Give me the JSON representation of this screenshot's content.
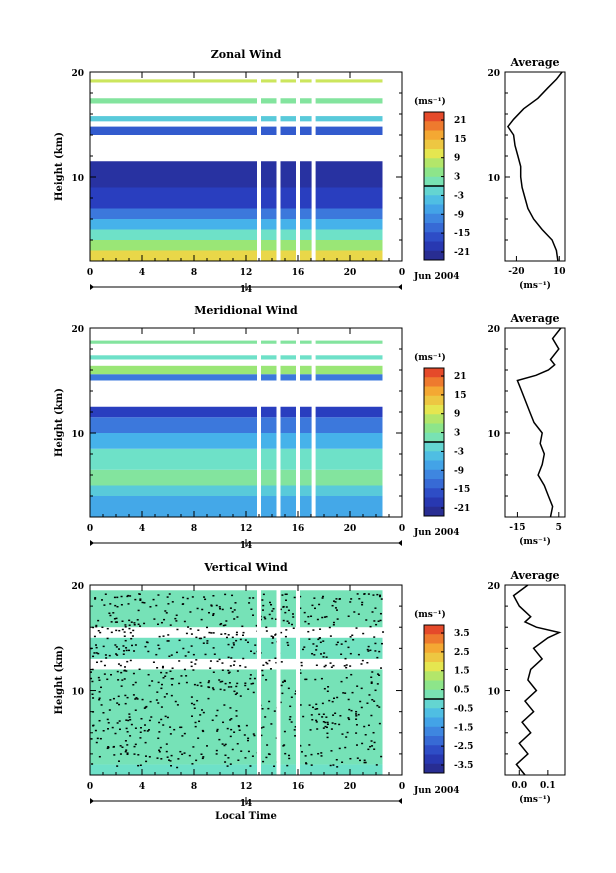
{
  "chart_data": [
    {
      "type": "heatmap",
      "title": "Zonal Wind",
      "ylabel": "Height (km)",
      "ylim": [
        2,
        20
      ],
      "yticks": [
        "10",
        "20"
      ],
      "xlim": [
        0,
        24
      ],
      "xticks": [
        "0",
        "4",
        "8",
        "12",
        "16",
        "20",
        "0"
      ],
      "date_marker": "14",
      "date_label": "Jun 2004",
      "colorbar_unit": "(ms⁻¹)",
      "colorbar_ticks": [
        "21",
        "15",
        "9",
        "3",
        "-3",
        "-9",
        "-15",
        "-21"
      ],
      "profile": {
        "title": "Average",
        "xlabel": "(ms⁻¹)",
        "xticks": [
          "-20",
          "10"
        ],
        "xlim": [
          -28,
          14
        ],
        "height": [
          2.0,
          3.0,
          4.0,
          5.0,
          6.0,
          7.0,
          8.0,
          9.0,
          10.0,
          11.0,
          12.0,
          13.0,
          14.0,
          14.8,
          15.5,
          16.5,
          17.5,
          18.5,
          19.3,
          20.0
        ],
        "values": [
          9,
          8,
          5,
          -2,
          -8,
          -12,
          -14,
          -16,
          -17,
          -17,
          -19,
          -21,
          -22,
          -26,
          -22,
          -15,
          -5,
          2,
          8,
          12
        ]
      },
      "bands": [
        {
          "y0": 2.0,
          "y1": 3.0,
          "value": 12
        },
        {
          "y0": 3.0,
          "y1": 4.0,
          "value": 6
        },
        {
          "y0": 4.0,
          "y1": 5.0,
          "value": 0
        },
        {
          "y0": 5.0,
          "y1": 6.0,
          "value": -6
        },
        {
          "y0": 6.0,
          "y1": 7.0,
          "value": -12
        },
        {
          "y0": 7.0,
          "y1": 9.0,
          "value": -18
        },
        {
          "y0": 9.0,
          "y1": 11.5,
          "value": -21
        },
        {
          "y0": 14.0,
          "y1": 14.8,
          "value": -15
        },
        {
          "y0": 15.3,
          "y1": 15.8,
          "value": -3
        },
        {
          "y0": 17.0,
          "y1": 17.5,
          "value": 3
        },
        {
          "y0": 19.0,
          "y1": 19.3,
          "value": 9
        }
      ],
      "gaps_hours": [
        13.0,
        14.5,
        16.0,
        17.2
      ]
    },
    {
      "type": "heatmap",
      "title": "Meridional Wind",
      "ylabel": "Height (km)",
      "ylim": [
        2,
        20
      ],
      "yticks": [
        "10",
        "20"
      ],
      "xlim": [
        0,
        24
      ],
      "xticks": [
        "0",
        "4",
        "8",
        "12",
        "16",
        "20",
        "0"
      ],
      "date_marker": "14",
      "date_label": "Jun 2004",
      "colorbar_unit": "(ms⁻¹)",
      "colorbar_ticks": [
        "21",
        "15",
        "9",
        "3",
        "-3",
        "-9",
        "-15",
        "-21"
      ],
      "profile": {
        "title": "Average",
        "xlabel": "(ms⁻¹)",
        "xticks": [
          "-15",
          "5"
        ],
        "xlim": [
          -21,
          8
        ],
        "height": [
          2.0,
          3.0,
          4.0,
          5.0,
          6.0,
          7.0,
          8.0,
          9.0,
          10.0,
          11.0,
          12.0,
          13.0,
          14.0,
          15.0,
          15.5,
          16.0,
          16.5,
          17.0,
          18.0,
          19.0,
          20.0
        ],
        "values": [
          1,
          2,
          0,
          -2,
          -5,
          -3,
          -2,
          -4,
          -3,
          -7,
          -9,
          -11,
          -13,
          -15,
          -6,
          0,
          3,
          1,
          5,
          2,
          6
        ]
      },
      "bands": [
        {
          "y0": 2.0,
          "y1": 4.0,
          "value": -7
        },
        {
          "y0": 4.0,
          "y1": 5.0,
          "value": -3
        },
        {
          "y0": 5.0,
          "y1": 6.5,
          "value": 3
        },
        {
          "y0": 6.5,
          "y1": 8.5,
          "value": 0
        },
        {
          "y0": 8.5,
          "y1": 10.0,
          "value": -6
        },
        {
          "y0": 10.0,
          "y1": 11.5,
          "value": -12
        },
        {
          "y0": 11.5,
          "y1": 12.5,
          "value": -18
        },
        {
          "y0": 15.0,
          "y1": 15.6,
          "value": -12
        },
        {
          "y0": 15.6,
          "y1": 16.4,
          "value": 6
        },
        {
          "y0": 17.0,
          "y1": 17.4,
          "value": 0
        },
        {
          "y0": 18.5,
          "y1": 18.8,
          "value": 3
        }
      ],
      "gaps_hours": [
        13.0,
        14.5,
        16.0,
        17.2
      ]
    },
    {
      "type": "heatmap",
      "title": "Vertical Wind",
      "ylabel": "Height (km)",
      "xlabel": "Local Time",
      "ylim": [
        2,
        20
      ],
      "yticks": [
        "10",
        "20"
      ],
      "xlim": [
        0,
        24
      ],
      "xticks": [
        "0",
        "4",
        "8",
        "12",
        "16",
        "20",
        "0"
      ],
      "date_marker": "14",
      "date_label": "Jun 2004",
      "colorbar_unit": "(ms⁻¹)",
      "colorbar_ticks": [
        "3.5",
        "2.5",
        "1.5",
        "0.5",
        "-0.5",
        "-1.5",
        "-2.5",
        "-3.5"
      ],
      "profile": {
        "title": "Average",
        "xlabel": "(ms⁻¹)",
        "xticks": [
          "0.0",
          "0.1"
        ],
        "xlim": [
          -0.05,
          0.16
        ],
        "height": [
          2.0,
          3.0,
          4.0,
          5.0,
          6.0,
          7.0,
          8.0,
          9.0,
          10.0,
          11.0,
          12.0,
          13.0,
          14.0,
          15.0,
          15.5,
          16.0,
          16.5,
          17.0,
          18.0,
          19.0,
          20.0
        ],
        "values": [
          0.02,
          -0.01,
          0.03,
          0.0,
          0.04,
          0.01,
          0.05,
          0.02,
          0.06,
          0.03,
          0.04,
          0.08,
          0.05,
          0.1,
          0.14,
          0.06,
          0.02,
          0.04,
          0.0,
          -0.02,
          0.03
        ]
      },
      "bands": [
        {
          "y0": 2.0,
          "y1": 3.0,
          "value": 0.0
        },
        {
          "y0": 3.0,
          "y1": 12.0,
          "value": 0.2
        },
        {
          "y0": 13.0,
          "y1": 15.0,
          "value": 0.1
        },
        {
          "y0": 16.0,
          "y1": 19.5,
          "value": 0.2
        }
      ],
      "gaps_hours": [
        13.0,
        14.5,
        16.0
      ]
    }
  ]
}
